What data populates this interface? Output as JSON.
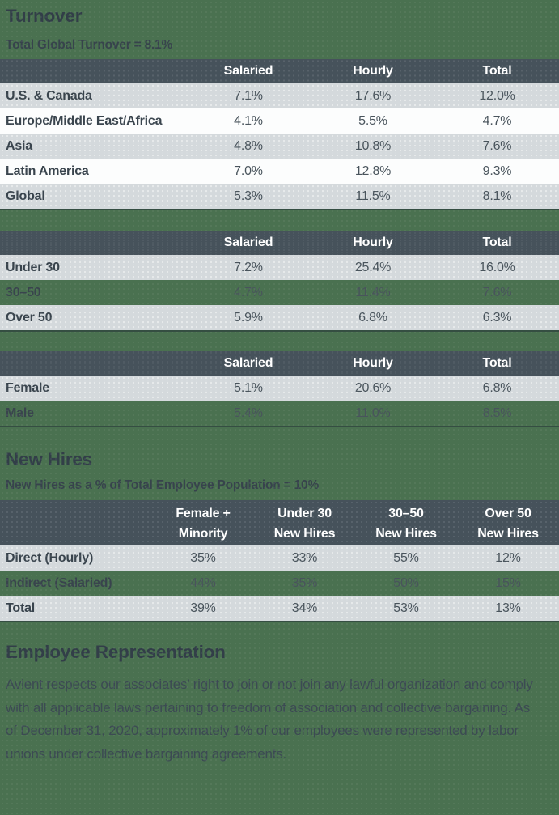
{
  "colors": {
    "page_background": "#4A7150",
    "table_header": "#46525B",
    "row_light": "#D4D9DC",
    "row_white": "#FCFDFD",
    "header_text": "#FFFFFF",
    "heading_text": "#323E48",
    "body_text": "#3C4A53"
  },
  "turnover": {
    "title": "Turnover",
    "subtitle": "Total Global Turnover = 8.1%",
    "columns": [
      "Salaried",
      "Hourly",
      "Total"
    ],
    "by_region": {
      "rows": [
        {
          "label": "U.S. & Canada",
          "values": [
            "7.1%",
            "17.6%",
            "12.0%"
          ]
        },
        {
          "label": "Europe/Middle East/Africa",
          "values": [
            "4.1%",
            "5.5%",
            "4.7%"
          ]
        },
        {
          "label": "Asia",
          "values": [
            "4.8%",
            "10.8%",
            "7.6%"
          ]
        },
        {
          "label": "Latin America",
          "values": [
            "7.0%",
            "12.8%",
            "9.3%"
          ]
        },
        {
          "label": "Global",
          "values": [
            "5.3%",
            "11.5%",
            "8.1%"
          ]
        }
      ]
    },
    "by_age": {
      "rows": [
        {
          "label": "Under 30",
          "values": [
            "7.2%",
            "25.4%",
            "16.0%"
          ]
        },
        {
          "label": "30–50",
          "values": [
            "4.7%",
            "11.4%",
            "7.6%"
          ]
        },
        {
          "label": "Over 50",
          "values": [
            "5.9%",
            "6.8%",
            "6.3%"
          ]
        }
      ]
    },
    "by_gender": {
      "rows": [
        {
          "label": "Female",
          "values": [
            "5.1%",
            "20.6%",
            "6.8%"
          ]
        },
        {
          "label": "Male",
          "values": [
            "5.4%",
            "11.0%",
            "8.5%"
          ]
        }
      ]
    }
  },
  "new_hires": {
    "title": "New Hires",
    "subtitle": "New Hires as a % of Total Employee Population = 10%",
    "columns": [
      {
        "line1": "Female +",
        "line2": "Minority"
      },
      {
        "line1": "Under 30",
        "line2": "New Hires"
      },
      {
        "line1": "30–50",
        "line2": "New Hires"
      },
      {
        "line1": "Over 50",
        "line2": "New Hires"
      }
    ],
    "rows": [
      {
        "label": "Direct (Hourly)",
        "values": [
          "35%",
          "33%",
          "55%",
          "12%"
        ]
      },
      {
        "label": "Indirect (Salaried)",
        "values": [
          "44%",
          "35%",
          "50%",
          "15%"
        ]
      },
      {
        "label": "Total",
        "values": [
          "39%",
          "34%",
          "53%",
          "13%"
        ]
      }
    ]
  },
  "employee_representation": {
    "title": "Employee Representation",
    "body": "Avient respects our associates’ right to join or not join any lawful organization and comply with all applicable laws pertaining to freedom of association and collective bargaining. As of December 31, 2020, approximately 1% of our employees were represented by labor unions under collective bargaining agreements."
  }
}
